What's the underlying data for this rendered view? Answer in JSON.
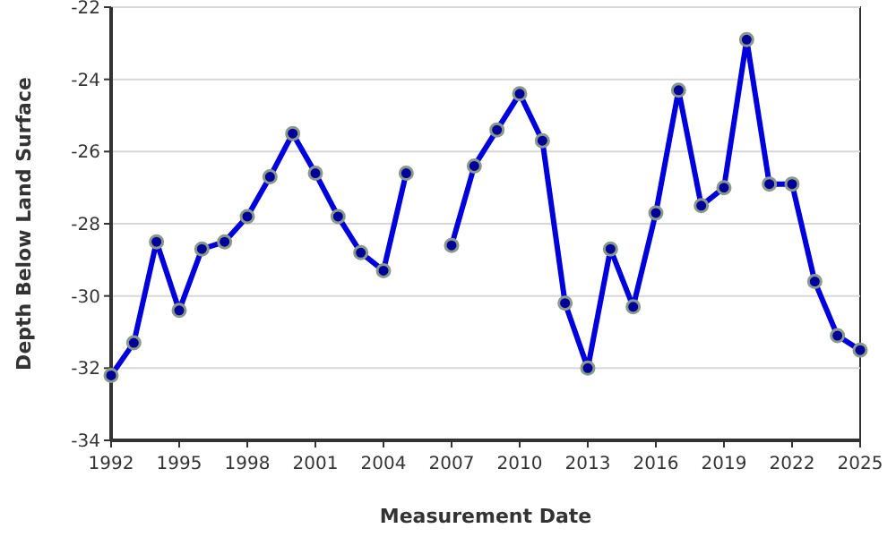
{
  "chart_data": {
    "type": "line",
    "xlabel": "Measurement Date",
    "ylabel": "Depth Below Land Surface",
    "x": [
      1992,
      1993,
      1994,
      1995,
      1996,
      1997,
      1998,
      1999,
      2000,
      2001,
      2002,
      2003,
      2004,
      2005,
      2006,
      2007,
      2008,
      2009,
      2010,
      2011,
      2012,
      2013,
      2014,
      2015,
      2016,
      2017,
      2018,
      2019,
      2020,
      2021,
      2022,
      2023,
      2024,
      2025
    ],
    "series": [
      {
        "color": "#0000dd",
        "values": [
          -32.2,
          -31.3,
          -28.5,
          -30.4,
          -28.7,
          -28.5,
          -27.8,
          -26.7,
          -25.5,
          -26.6,
          -27.8,
          -28.8,
          -29.3,
          -26.6,
          null,
          -28.6,
          -26.4,
          -25.4,
          -24.4,
          -25.7,
          -30.2,
          -32.0,
          -28.7,
          -30.3,
          -27.7,
          -24.3,
          -27.5,
          -27.0,
          -22.9,
          -26.9,
          -26.9,
          -29.6,
          -31.1,
          -31.5
        ]
      }
    ],
    "xlim": [
      1992,
      2025
    ],
    "xticks": [
      1992,
      1995,
      1998,
      2001,
      2004,
      2007,
      2010,
      2013,
      2016,
      2019,
      2022,
      2025
    ],
    "ylim": [
      -34,
      -22
    ],
    "yticks": [
      -34,
      -32,
      -30,
      -28,
      -26,
      -24,
      -22
    ],
    "grid": "y",
    "marker": "circle",
    "line_style": "solid"
  }
}
